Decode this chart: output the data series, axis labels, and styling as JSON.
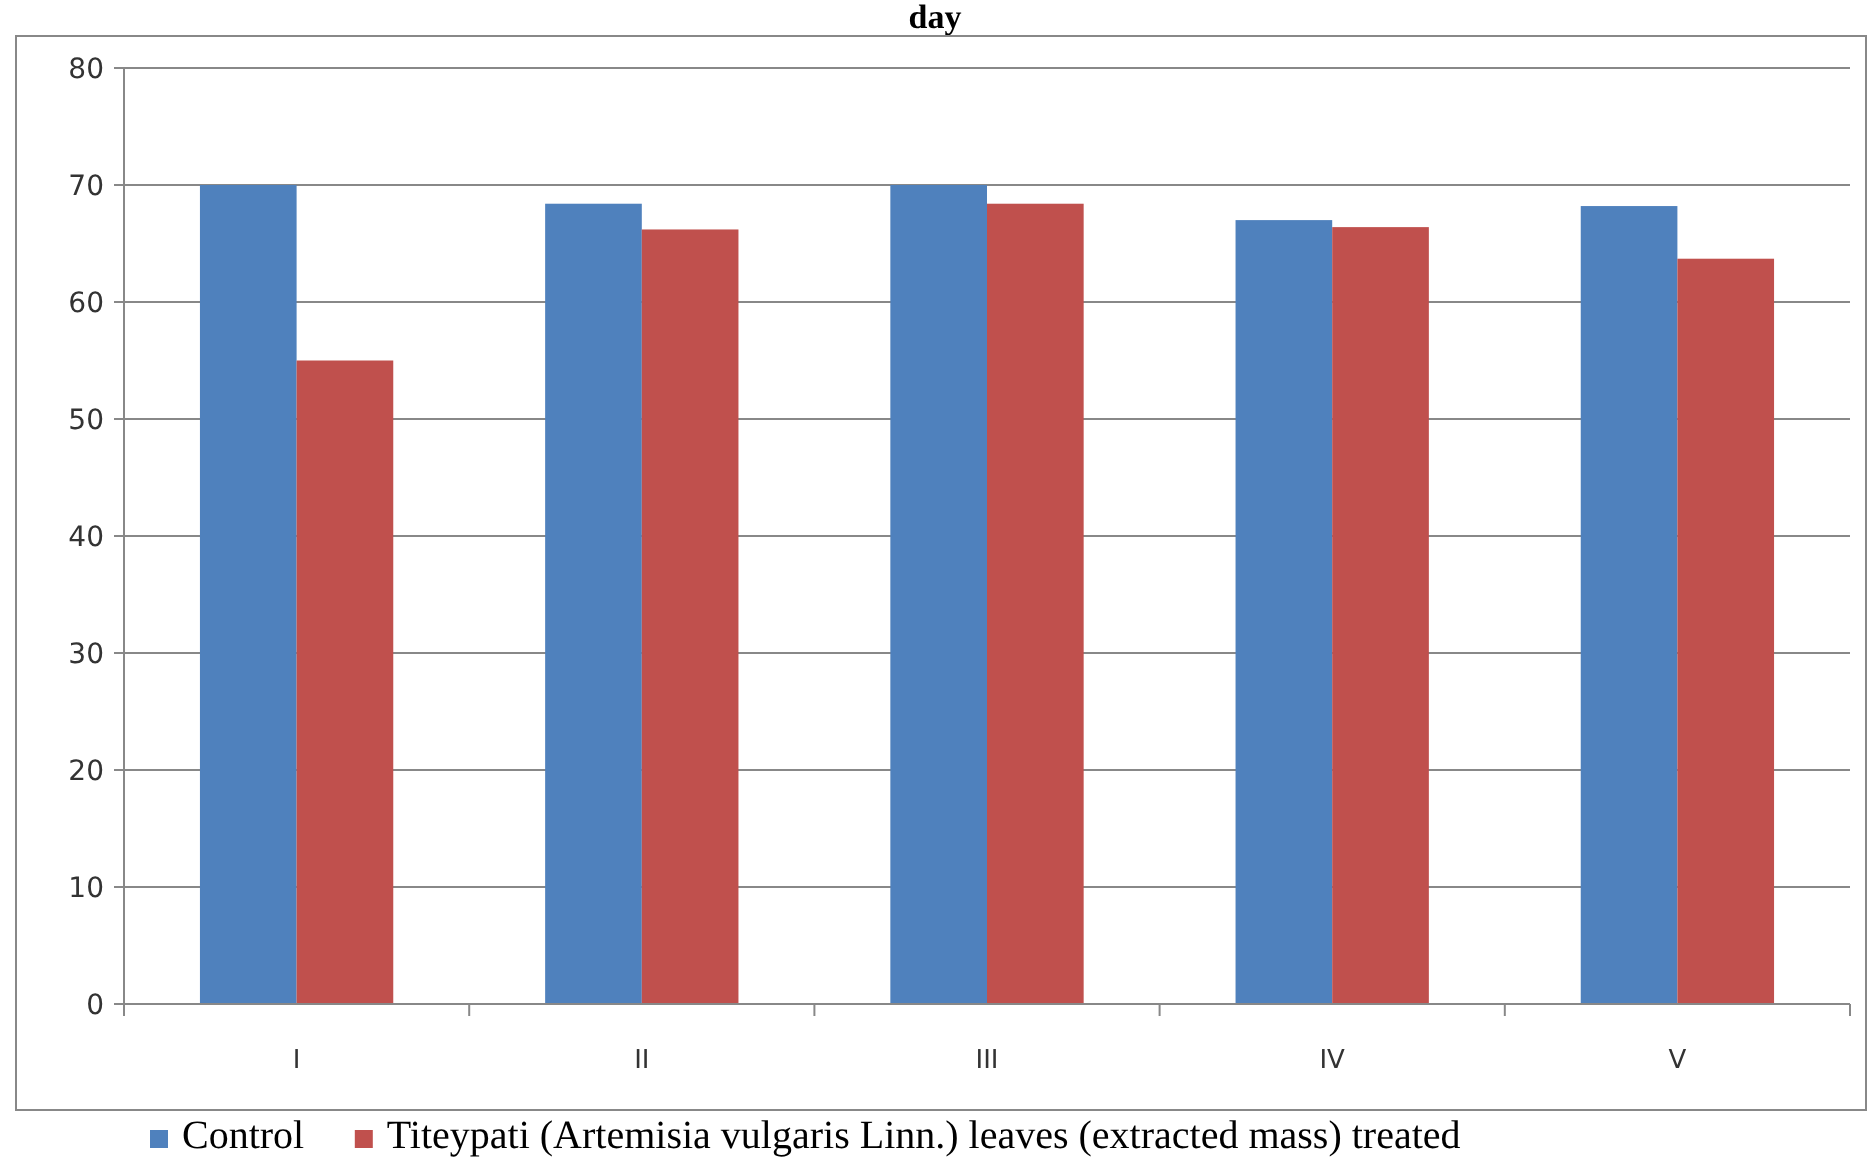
{
  "chart_data": {
    "type": "bar",
    "title": "day",
    "categories": [
      "I",
      "II",
      "III",
      "IV",
      "V"
    ],
    "series": [
      {
        "name": "Control",
        "color": "#4f81bd",
        "values": [
          70,
          68.4,
          70,
          67,
          68.2
        ]
      },
      {
        "name": "Titeypati  (Artemisia vulgaris Linn.)  leaves (extracted mass) treated",
        "color": "#c0504d",
        "values": [
          55,
          66.2,
          68.4,
          66.4,
          63.7
        ]
      }
    ],
    "ylim": [
      0,
      80
    ],
    "yticks": [
      0,
      10,
      20,
      30,
      40,
      50,
      60,
      70,
      80
    ],
    "grid": "y",
    "legend": "bottom"
  }
}
